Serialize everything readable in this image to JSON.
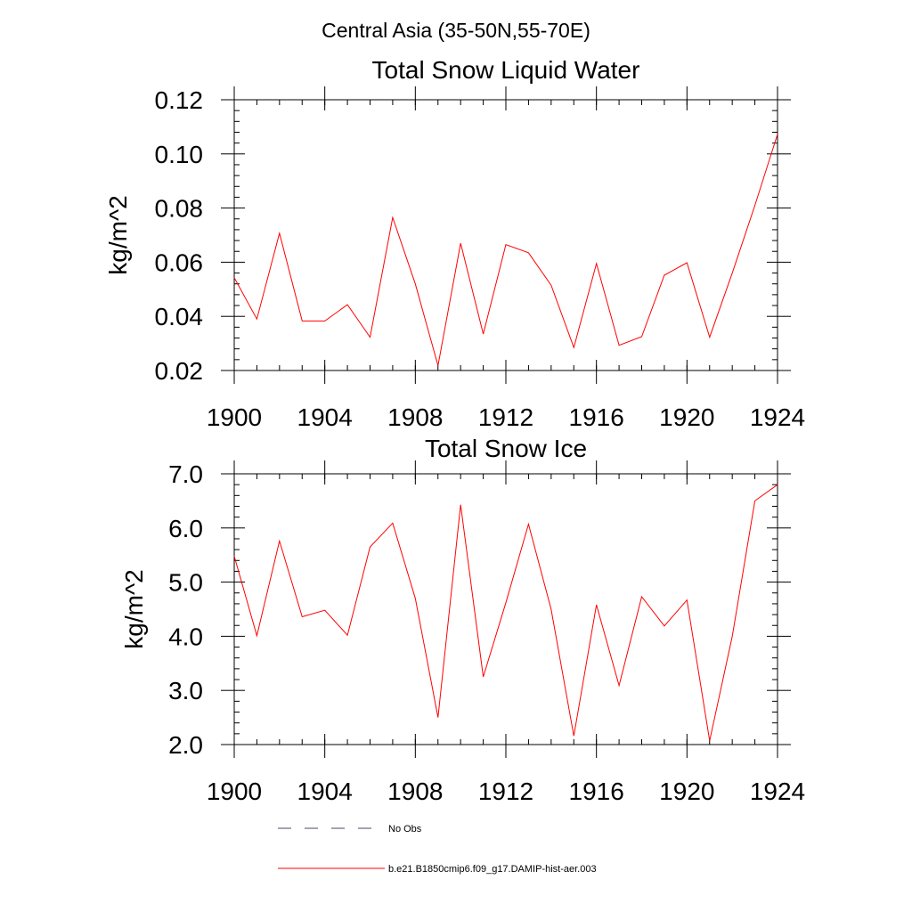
{
  "figure": {
    "suptitle": "Central Asia (35-50N,55-70E)"
  },
  "chart_data": [
    {
      "type": "line",
      "title": "Total Snow Liquid Water",
      "xlabel": "",
      "ylabel": "kg/m^2",
      "xlim": [
        1900,
        1924
      ],
      "ylim": [
        0.02,
        0.12
      ],
      "xticks": [
        1900,
        1904,
        1908,
        1912,
        1916,
        1920,
        1924
      ],
      "yticks": [
        0.02,
        0.04,
        0.06,
        0.08,
        0.1,
        0.12
      ],
      "ytick_labels": [
        "0.02",
        "0.04",
        "0.06",
        "0.08",
        "0.10",
        "0.12"
      ],
      "grid": false,
      "x": [
        1900,
        1901,
        1902,
        1903,
        1904,
        1905,
        1906,
        1907,
        1908,
        1909,
        1910,
        1911,
        1912,
        1913,
        1914,
        1915,
        1916,
        1917,
        1918,
        1919,
        1920,
        1921,
        1922,
        1923,
        1924
      ],
      "series": [
        {
          "name": "b.e21.B1850cmip6.f09_g17.DAMIP-hist-aer.003",
          "color": "#ff0000",
          "values": [
            0.0543,
            0.039,
            0.0707,
            0.0383,
            0.0383,
            0.0443,
            0.0323,
            0.0765,
            0.052,
            0.0218,
            0.067,
            0.0335,
            0.0665,
            0.0635,
            0.0515,
            0.0285,
            0.0595,
            0.0293,
            0.0325,
            0.0552,
            0.0598,
            0.0323,
            0.056,
            0.081,
            0.1073
          ]
        }
      ]
    },
    {
      "type": "line",
      "title": "Total Snow Ice",
      "xlabel": "",
      "ylabel": "kg/m^2",
      "xlim": [
        1900,
        1924
      ],
      "ylim": [
        2.0,
        7.0
      ],
      "xticks": [
        1900,
        1904,
        1908,
        1912,
        1916,
        1920,
        1924
      ],
      "yticks": [
        2.0,
        3.0,
        4.0,
        5.0,
        6.0,
        7.0
      ],
      "ytick_labels": [
        "2.0",
        "3.0",
        "4.0",
        "5.0",
        "6.0",
        "7.0"
      ],
      "grid": false,
      "x": [
        1900,
        1901,
        1902,
        1903,
        1904,
        1905,
        1906,
        1907,
        1908,
        1909,
        1910,
        1911,
        1912,
        1913,
        1914,
        1915,
        1916,
        1917,
        1918,
        1919,
        1920,
        1921,
        1922,
        1923,
        1924
      ],
      "series": [
        {
          "name": "b.e21.B1850cmip6.f09_g17.DAMIP-hist-aer.003",
          "color": "#ff0000",
          "values": [
            5.48,
            4.01,
            5.76,
            4.36,
            4.48,
            4.02,
            5.65,
            6.09,
            4.7,
            2.5,
            6.43,
            3.25,
            4.62,
            6.07,
            4.5,
            2.16,
            4.58,
            3.09,
            4.73,
            4.19,
            4.67,
            2.07,
            4.0,
            6.5,
            6.8
          ]
        }
      ]
    }
  ],
  "legend": [
    {
      "label": "No Obs",
      "style": "dashed",
      "color": "#4a4a6a"
    },
    {
      "label": "b.e21.B1850cmip6.f09_g17.DAMIP-hist-aer.003",
      "style": "solid",
      "color": "#ff0000"
    }
  ]
}
